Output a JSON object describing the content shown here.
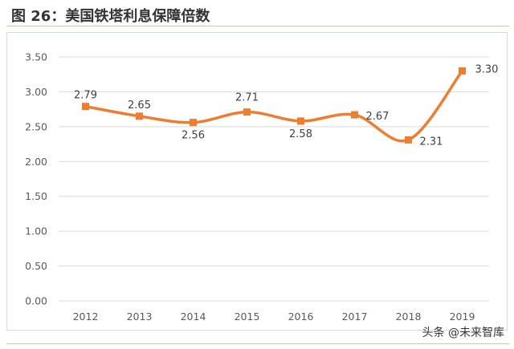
{
  "figure": {
    "title": "图 26：美国铁塔利息保障倍数"
  },
  "watermark": {
    "text": "头条 @未来智库"
  },
  "colors": {
    "line": "#ed7d31",
    "grid": "#d9d9d9",
    "axis_text": "#595959",
    "label_text": "#404040",
    "title_text": "#333333",
    "rule": "#e2c0a0"
  },
  "chart_data": {
    "type": "line",
    "title": "",
    "xlabel": "",
    "ylabel": "",
    "categories": [
      "2012",
      "2013",
      "2014",
      "2015",
      "2016",
      "2017",
      "2018",
      "2019"
    ],
    "series": [
      {
        "values": [
          2.79,
          2.65,
          2.56,
          2.71,
          2.58,
          2.67,
          2.31,
          3.3
        ],
        "labels": [
          "2.79",
          "2.65",
          "2.56",
          "2.71",
          "2.58",
          "2.67",
          "2.31",
          "3.30"
        ],
        "marker": "square",
        "smooth": true
      }
    ],
    "ylim": [
      0,
      3.5
    ],
    "yticks": [
      "0.00",
      "0.50",
      "1.00",
      "1.50",
      "2.00",
      "2.50",
      "3.00",
      "3.50"
    ],
    "grid": true,
    "legend": "none"
  }
}
